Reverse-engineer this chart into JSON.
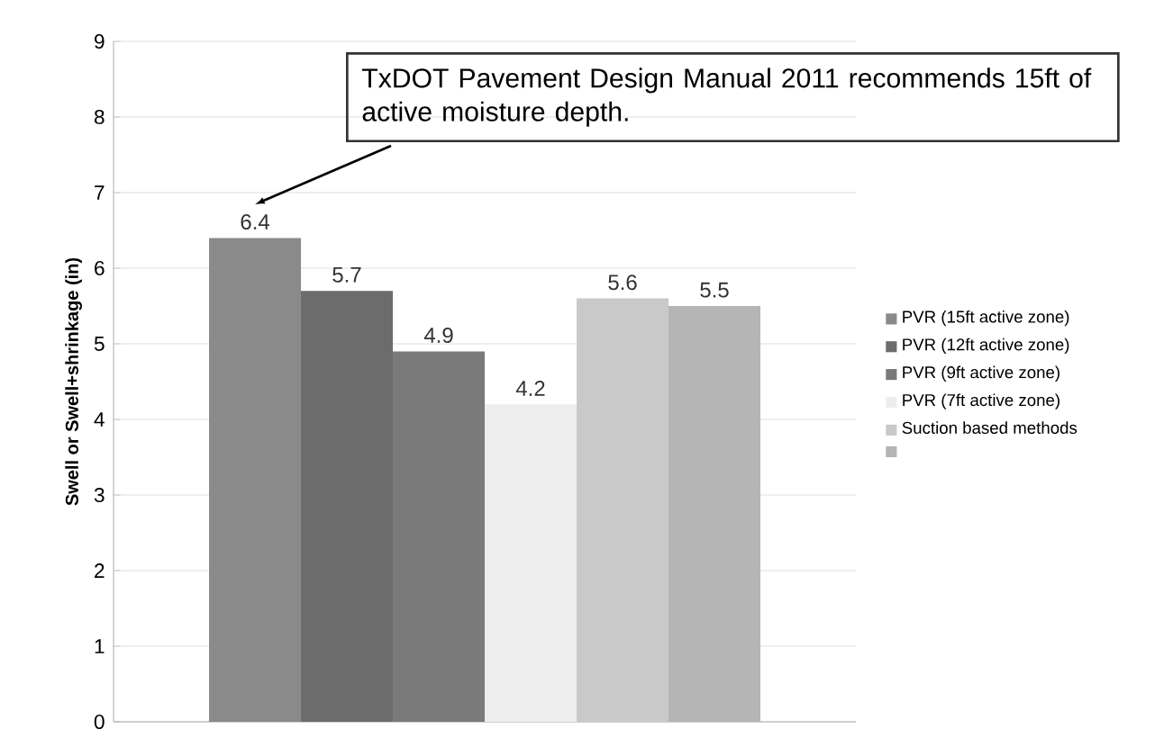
{
  "chart_data": {
    "type": "bar",
    "ylabel": "**Swell or Swell+shrinkage (in)**",
    "categories": [
      null
    ],
    "series": [
      {
        "name": "PVR (15ft active zone)",
        "color": "#8a8a8a",
        "values": [
          6.4
        ]
      },
      {
        "name": "PVR (12ft active zone)",
        "color": "#6c6c6c",
        "values": [
          5.7
        ]
      },
      {
        "name": "PVR (9ft active zone)",
        "color": "#7a7a7a",
        "values": [
          4.9
        ]
      },
      {
        "name": "PVR (7ft active zone)",
        "color": "#ededed",
        "values": [
          4.2
        ]
      },
      {
        "name": "Suction based methods",
        "color": "#c9c9c9",
        "values": [
          5.6
        ]
      },
      {
        "color": "#b5b5b5",
        "values": [
          5.5
        ]
      }
    ],
    "ylim": [
      0,
      9
    ],
    "yticks": [
      0,
      1,
      2,
      3,
      4,
      5,
      6,
      7,
      8,
      9
    ],
    "grid": "y",
    "legend": "right",
    "data_labels": true,
    "annotations": [
      "TxDOT Pavement Design Manual 2011 recommends 15ft of active moisture depth."
    ]
  }
}
